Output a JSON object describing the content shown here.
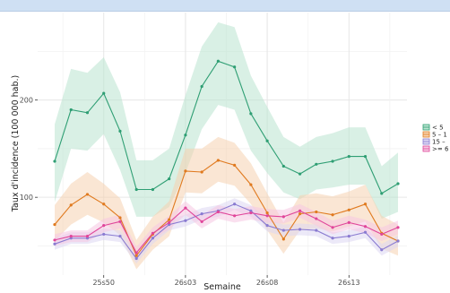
{
  "chart_data": {
    "type": "line",
    "title": "",
    "xlabel": "Semaine",
    "ylabel": "Taux d'incidence (100 000 hab.)",
    "x_ticks": [
      "25s50",
      "26s03",
      "26s08",
      "26s13"
    ],
    "y_ticks": [
      100,
      200
    ],
    "ylim": [
      20,
      290
    ],
    "grid": true,
    "legend_position": "right",
    "points": 22,
    "x_tick_indices": [
      3,
      8,
      13,
      18
    ],
    "series": [
      {
        "name": "< 5",
        "color": "#2e9e73",
        "fill": "#b9e3cf",
        "values": [
          137,
          190,
          187,
          207,
          168,
          108,
          108,
          119,
          164,
          214,
          240,
          234,
          186,
          158,
          132,
          124,
          134,
          137,
          142,
          142,
          104,
          114
        ],
        "lower": [
          95,
          150,
          148,
          165,
          128,
          80,
          80,
          90,
          125,
          170,
          195,
          190,
          148,
          125,
          105,
          98,
          108,
          110,
          113,
          113,
          78,
          85
        ],
        "upper": [
          175,
          232,
          228,
          244,
          208,
          138,
          138,
          150,
          205,
          255,
          280,
          275,
          225,
          193,
          162,
          152,
          162,
          166,
          172,
          172,
          132,
          146
        ]
      },
      {
        "name": "5 – 1",
        "color": "#e07a1f",
        "fill": "#f6d2b0",
        "values": [
          72,
          92,
          103,
          93,
          79,
          40,
          62,
          77,
          127,
          126,
          138,
          133,
          113,
          84,
          57,
          83,
          85,
          82,
          87,
          93,
          63,
          55
        ],
        "lower": [
          55,
          72,
          82,
          74,
          61,
          26,
          46,
          60,
          105,
          104,
          116,
          112,
          93,
          66,
          42,
          66,
          68,
          65,
          70,
          75,
          47,
          40
        ],
        "upper": [
          92,
          114,
          126,
          114,
          99,
          56,
          80,
          96,
          150,
          150,
          162,
          156,
          135,
          104,
          74,
          102,
          104,
          101,
          106,
          113,
          81,
          72
        ]
      },
      {
        "name": "15 –",
        "color": "#8a7bd1",
        "fill": "#dcd7f2",
        "values": [
          52,
          58,
          58,
          62,
          60,
          37,
          58,
          72,
          76,
          83,
          86,
          93,
          86,
          71,
          66,
          67,
          66,
          58,
          60,
          64,
          46,
          55
        ],
        "lower": [
          46,
          52,
          52,
          56,
          54,
          32,
          52,
          66,
          70,
          77,
          80,
          87,
          80,
          65,
          60,
          61,
          60,
          52,
          54,
          58,
          40,
          49
        ],
        "upper": [
          58,
          64,
          64,
          68,
          66,
          43,
          64,
          78,
          82,
          89,
          92,
          99,
          92,
          77,
          72,
          73,
          72,
          64,
          66,
          70,
          52,
          61
        ]
      },
      {
        "name": ">= 6",
        "color": "#e0459a",
        "fill": "#f6c7e1",
        "values": [
          56,
          60,
          60,
          71,
          75,
          43,
          63,
          74,
          89,
          75,
          85,
          81,
          84,
          81,
          80,
          86,
          78,
          69,
          74,
          70,
          62,
          69
        ],
        "lower": [
          50,
          54,
          54,
          64,
          68,
          37,
          57,
          67,
          82,
          68,
          78,
          74,
          77,
          74,
          73,
          79,
          71,
          62,
          67,
          63,
          55,
          62
        ],
        "upper": [
          62,
          66,
          66,
          78,
          82,
          49,
          69,
          81,
          96,
          82,
          92,
          88,
          91,
          88,
          87,
          93,
          85,
          76,
          81,
          77,
          69,
          76
        ]
      }
    ]
  }
}
